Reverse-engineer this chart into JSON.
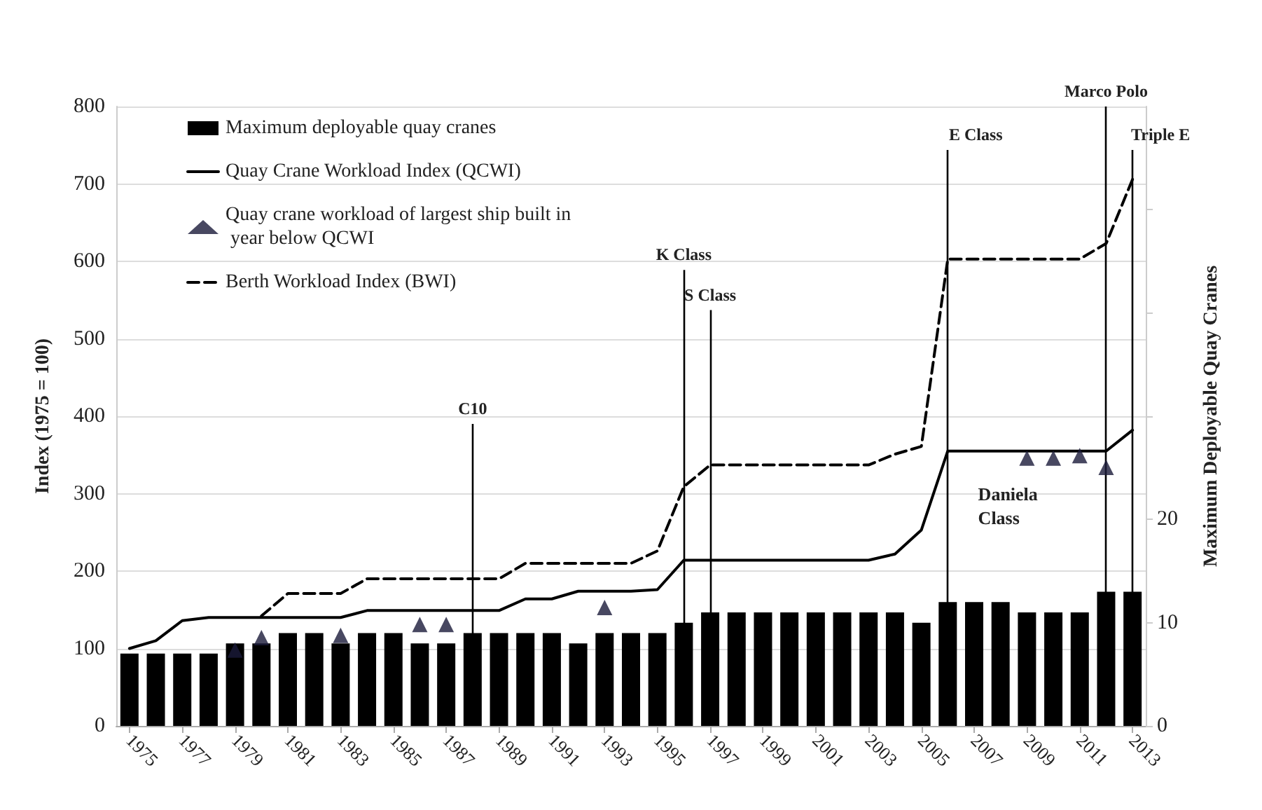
{
  "chart_data": {
    "type": "bar",
    "ylabel": "Index (1975 = 100)",
    "y2label": "Maximum Deployable Quay Cranes",
    "x": [
      1975,
      1976,
      1977,
      1978,
      1979,
      1980,
      1981,
      1982,
      1983,
      1984,
      1985,
      1986,
      1987,
      1988,
      1989,
      1990,
      1991,
      1992,
      1993,
      1994,
      1995,
      1996,
      1997,
      1998,
      1999,
      2000,
      2001,
      2002,
      2003,
      2004,
      2005,
      2006,
      2007,
      2008,
      2009,
      2010,
      2011,
      2012,
      2013
    ],
    "xlim": [
      1974.5,
      2013.5
    ],
    "xticks": [
      1975,
      1977,
      1979,
      1981,
      1983,
      1985,
      1987,
      1989,
      1991,
      1993,
      1995,
      1997,
      1999,
      2001,
      2003,
      2005,
      2007,
      2009,
      2011,
      2013
    ],
    "ylim": [
      0,
      800
    ],
    "yticks": [
      0,
      100,
      200,
      300,
      400,
      500,
      600,
      700,
      800
    ],
    "y2lim": [
      0,
      60
    ],
    "y2ticks": [
      0,
      10,
      20,
      {
        "value": 30,
        "label": null
      },
      {
        "value": 40,
        "label": null
      },
      {
        "value": 50,
        "label": null
      }
    ],
    "grid": "y",
    "legend": "top left",
    "series": [
      {
        "name": "Maximum deployable quay cranes",
        "axis": "y2",
        "color": "#000000",
        "values": [
          7,
          7,
          7,
          7,
          8,
          8,
          9,
          9,
          8,
          9,
          9,
          8,
          8,
          9,
          9,
          9,
          9,
          8,
          9,
          9,
          9,
          10,
          11,
          11,
          11,
          11,
          11,
          11,
          11,
          11,
          10,
          12,
          12,
          12,
          11,
          11,
          11,
          13,
          13
        ]
      },
      {
        "name": "Quay Crane Workload Index (QCWI)",
        "type": "line",
        "line_style": "solid",
        "color": "#000000",
        "values": [
          100,
          110,
          136,
          140,
          140,
          140,
          140,
          140,
          140,
          149,
          149,
          149,
          149,
          149,
          149,
          164,
          164,
          174,
          174,
          174,
          176,
          214,
          214,
          214,
          214,
          214,
          214,
          214,
          214,
          222,
          253,
          355,
          355,
          355,
          355,
          355,
          355,
          355,
          382
        ]
      },
      {
        "name": "Quay crane workload of largest ship built in year below QCWI",
        "type": "scatter",
        "marker": "triangle",
        "color": "#1a1a3a",
        "x": [
          1979,
          1980,
          1983,
          1986,
          1987,
          1993,
          2009,
          2010,
          2011,
          2012
        ],
        "values": [
          98,
          114,
          117,
          131,
          131,
          153,
          346,
          346,
          349,
          334
        ]
      },
      {
        "name": "Berth Workload Index (BWI)",
        "type": "line",
        "line_style": "dashed",
        "color": "#000000",
        "values": [
          null,
          null,
          null,
          null,
          null,
          142,
          171,
          171,
          171,
          190,
          190,
          190,
          190,
          190,
          190,
          210,
          210,
          210,
          210,
          210,
          226,
          309,
          337,
          337,
          337,
          337,
          337,
          337,
          337,
          351,
          361,
          603,
          603,
          603,
          603,
          603,
          603,
          623,
          706
        ]
      }
    ],
    "ref_lines": [
      {
        "axis": "x",
        "value": 1988,
        "label": "C10"
      },
      {
        "axis": "x",
        "value": 1996,
        "label": "K Class"
      },
      {
        "axis": "x",
        "value": 1997,
        "label": "S Class"
      },
      {
        "axis": "x",
        "value": 2006,
        "label": "E Class"
      },
      {
        "axis": "x",
        "value": 2012,
        "label": "Marco Polo"
      },
      {
        "axis": "x",
        "value": 2013,
        "label": "Triple E"
      }
    ],
    "annotations": [
      "Daniela Class"
    ]
  }
}
